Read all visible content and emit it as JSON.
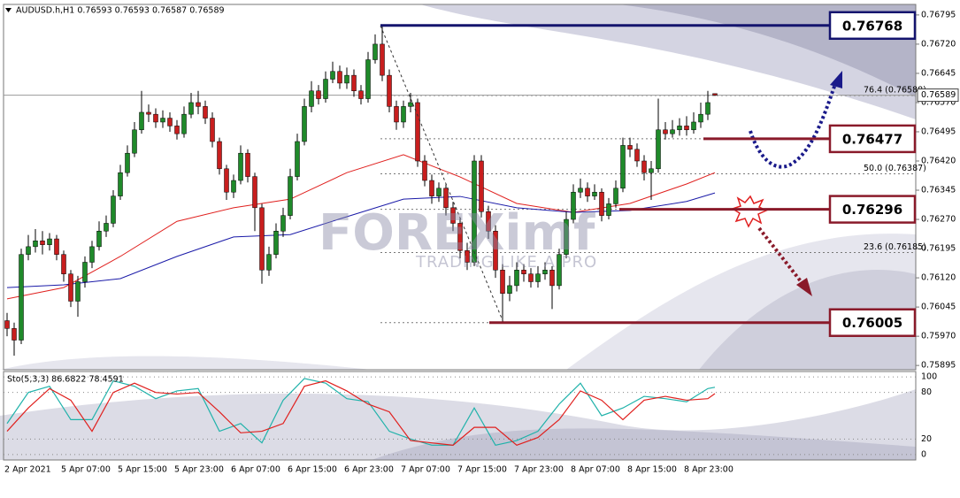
{
  "chart_data": [
    {
      "type": "candlestick",
      "title": "AUDUSD.h,H1  0.76593 0.76593 0.76587 0.76589",
      "watermark": [
        "FOREXimf",
        "TRADING LIKE A PRO"
      ],
      "categories": [
        "2 Apr 2021",
        null,
        null,
        null,
        null,
        null,
        null,
        null,
        "5 Apr 07:00",
        null,
        null,
        null,
        null,
        null,
        null,
        null,
        "5 Apr 15:00",
        null,
        null,
        null,
        null,
        null,
        null,
        null,
        "5 Apr 23:00",
        null,
        null,
        null,
        null,
        null,
        null,
        null,
        "6 Apr 07:00",
        null,
        null,
        null,
        null,
        null,
        null,
        null,
        "6 Apr 15:00",
        null,
        null,
        null,
        null,
        null,
        null,
        null,
        "6 Apr 23:00",
        null,
        null,
        null,
        null,
        null,
        null,
        null,
        "7 Apr 07:00",
        null,
        null,
        null,
        null,
        null,
        null,
        null,
        "7 Apr 15:00",
        null,
        null,
        null,
        null,
        null,
        null,
        null,
        "7 Apr 23:00",
        null,
        null,
        null,
        null,
        null,
        null,
        null,
        "8 Apr 07:00",
        null,
        null,
        null,
        null,
        null,
        null,
        null,
        "8 Apr 15:00",
        null,
        null,
        null,
        null,
        null,
        null,
        null,
        "8 Apr 23:00",
        null,
        null,
        null,
        null
      ],
      "open": [
        0.7601,
        0.7599,
        0.7596,
        0.7618,
        0.762,
        0.76215,
        0.76205,
        0.7622,
        0.7618,
        0.7613,
        0.7606,
        0.7611,
        0.7616,
        0.762,
        0.7624,
        0.7626,
        0.7633,
        0.7639,
        0.7644,
        0.765,
        0.76545,
        0.7654,
        0.7652,
        0.7653,
        0.7651,
        0.7649,
        0.7654,
        0.7657,
        0.7656,
        0.7653,
        0.7647,
        0.764,
        0.7634,
        0.7637,
        0.7644,
        0.7638,
        0.763,
        0.7614,
        0.7618,
        0.7624,
        0.7628,
        0.7638,
        0.7647,
        0.7656,
        0.766,
        0.7658,
        0.7663,
        0.7665,
        0.7662,
        0.7664,
        0.766,
        0.7658,
        0.7668,
        0.7672,
        0.7664,
        0.7656,
        0.7652,
        0.7656,
        0.7657,
        0.7642,
        0.7637,
        0.7633,
        0.7635,
        0.763,
        0.7626,
        0.7619,
        0.7616,
        0.7642,
        0.7629,
        0.7624,
        0.7614,
        0.7608,
        0.761,
        0.7614,
        0.7613,
        0.7611,
        0.7613,
        0.7614,
        0.761,
        0.7618,
        0.7627,
        0.7634,
        0.7635,
        0.7633,
        0.7634,
        0.7628,
        0.7631,
        0.7635,
        0.7646,
        0.7645,
        0.7642,
        0.7639,
        0.764,
        0.765,
        0.7649,
        0.765,
        0.7651,
        0.765,
        0.7652,
        0.7654,
        0.76593
      ],
      "high": [
        0.7603,
        0.76005,
        0.76195,
        0.7623,
        0.76245,
        0.7624,
        0.76235,
        0.7623,
        0.7619,
        0.7614,
        0.76125,
        0.76175,
        0.76215,
        0.76265,
        0.7628,
        0.76345,
        0.7641,
        0.7646,
        0.7652,
        0.766,
        0.76565,
        0.76555,
        0.7655,
        0.76545,
        0.76525,
        0.7656,
        0.76595,
        0.766,
        0.76575,
        0.76545,
        0.7648,
        0.7641,
        0.76385,
        0.7646,
        0.7645,
        0.7639,
        0.7631,
        0.762,
        0.7626,
        0.763,
        0.764,
        0.7649,
        0.7658,
        0.76625,
        0.76615,
        0.7665,
        0.76675,
        0.76665,
        0.7666,
        0.76655,
        0.76615,
        0.767,
        0.76745,
        0.76768,
        0.76655,
        0.76575,
        0.76575,
        0.76595,
        0.7658,
        0.76435,
        0.76385,
        0.76365,
        0.7636,
        0.76315,
        0.76275,
        0.7621,
        0.76435,
        0.76435,
        0.76305,
        0.76255,
        0.76155,
        0.76125,
        0.7616,
        0.76155,
        0.76145,
        0.7615,
        0.7616,
        0.7615,
        0.76195,
        0.7629,
        0.7636,
        0.76375,
        0.76365,
        0.7636,
        0.7635,
        0.76325,
        0.7637,
        0.7648,
        0.7648,
        0.76465,
        0.76435,
        0.7642,
        0.7658,
        0.7652,
        0.76525,
        0.7653,
        0.76535,
        0.76545,
        0.7657,
        0.766,
        0.76593
      ],
      "low": [
        0.7597,
        0.7592,
        0.7595,
        0.76165,
        0.76185,
        0.7618,
        0.7619,
        0.76165,
        0.7611,
        0.76045,
        0.7602,
        0.76095,
        0.76145,
        0.7619,
        0.76225,
        0.7625,
        0.7632,
        0.7638,
        0.7643,
        0.7649,
        0.7652,
        0.76505,
        0.76505,
        0.76495,
        0.76475,
        0.7648,
        0.7653,
        0.7654,
        0.76515,
        0.76455,
        0.76385,
        0.7632,
        0.76325,
        0.7636,
        0.76365,
        0.7624,
        0.76105,
        0.76125,
        0.7617,
        0.76225,
        0.7627,
        0.7637,
        0.7646,
        0.76545,
        0.76565,
        0.7657,
        0.7662,
        0.76605,
        0.76605,
        0.76585,
        0.76565,
        0.7657,
        0.7667,
        0.76625,
        0.76545,
        0.765,
        0.76505,
        0.76545,
        0.76405,
        0.76355,
        0.7631,
        0.76315,
        0.7628,
        0.7624,
        0.7617,
        0.7614,
        0.7615,
        0.76275,
        0.7622,
        0.7612,
        0.76005,
        0.7606,
        0.76085,
        0.7611,
        0.76095,
        0.76095,
        0.76115,
        0.7604,
        0.7609,
        0.7617,
        0.7626,
        0.76325,
        0.76315,
        0.7632,
        0.76265,
        0.7627,
        0.763,
        0.7634,
        0.7643,
        0.76405,
        0.7637,
        0.7632,
        0.7639,
        0.76475,
        0.7648,
        0.76485,
        0.76485,
        0.7649,
        0.76505,
        0.76525,
        0.76587
      ],
      "close": [
        0.7599,
        0.7596,
        0.7618,
        0.762,
        0.76215,
        0.76205,
        0.7622,
        0.7618,
        0.7613,
        0.7606,
        0.7611,
        0.7616,
        0.762,
        0.7624,
        0.7626,
        0.7633,
        0.7639,
        0.7644,
        0.765,
        0.76545,
        0.7654,
        0.7652,
        0.7653,
        0.7651,
        0.7649,
        0.7654,
        0.7657,
        0.7656,
        0.7653,
        0.7647,
        0.764,
        0.7634,
        0.7637,
        0.7644,
        0.7638,
        0.763,
        0.7614,
        0.7618,
        0.7624,
        0.7628,
        0.7638,
        0.7647,
        0.7656,
        0.766,
        0.7658,
        0.7663,
        0.7665,
        0.7662,
        0.7664,
        0.766,
        0.7658,
        0.7668,
        0.7672,
        0.7664,
        0.7656,
        0.7652,
        0.7656,
        0.7657,
        0.7642,
        0.7637,
        0.7633,
        0.7635,
        0.763,
        0.7626,
        0.7619,
        0.7616,
        0.7642,
        0.7629,
        0.7624,
        0.7614,
        0.7608,
        0.761,
        0.7614,
        0.7613,
        0.7611,
        0.7613,
        0.7614,
        0.761,
        0.7618,
        0.7627,
        0.7634,
        0.7635,
        0.7633,
        0.7634,
        0.7628,
        0.7631,
        0.7635,
        0.7646,
        0.7645,
        0.7642,
        0.7639,
        0.764,
        0.765,
        0.7649,
        0.765,
        0.7651,
        0.765,
        0.7652,
        0.7654,
        0.7657,
        0.76589
      ],
      "up_color": "#1f8a2a",
      "down_color": "#c81e1e",
      "moving_averages": [
        {
          "color": "#e0201e",
          "x": [
            0,
            8,
            16,
            24,
            32,
            40,
            48,
            56,
            64,
            72,
            80,
            88,
            96,
            100
          ],
          "values": [
            0.76066,
            0.76095,
            0.76175,
            0.76265,
            0.763,
            0.76322,
            0.7639,
            0.76436,
            0.76379,
            0.76311,
            0.76288,
            0.76311,
            0.76361,
            0.7639
          ]
        },
        {
          "color": "#1a1aa8",
          "x": [
            0,
            8,
            16,
            24,
            32,
            40,
            48,
            56,
            64,
            72,
            80,
            88,
            96,
            100
          ],
          "values": [
            0.76095,
            0.76102,
            0.76118,
            0.76175,
            0.76225,
            0.76231,
            0.76277,
            0.76322,
            0.76329,
            0.763,
            0.76288,
            0.76293,
            0.76316,
            0.76338
          ]
        }
      ],
      "ylim": [
        0.75884,
        0.76822
      ],
      "yticks": [
        0.76795,
        {
          "value": 0.7672,
          "label": "0.76720"
        },
        0.76645,
        {
          "value": 0.7657,
          "label": "0.76570"
        },
        0.76495,
        {
          "value": 0.7642,
          "label": "0.76420"
        },
        0.76345,
        {
          "value": 0.7627,
          "label": "0.76270"
        },
        0.76195,
        {
          "value": 0.7612,
          "label": "0.76120"
        },
        0.76045,
        {
          "value": 0.7597,
          "label": "0.75970"
        },
        0.75895
      ],
      "levels": [
        {
          "value": 0.76768,
          "color": "#14146e"
        },
        {
          "value": 0.76477,
          "color": "#8a1a2a"
        },
        {
          "value": 0.76296,
          "color": "#8a1a2a"
        },
        {
          "value": 0.76005,
          "color": "#8a1a2a"
        }
      ],
      "fib_levels": [
        {
          "label": "76.4 (0.76588)",
          "value": 0.76588
        },
        {
          "label": "50.0 (0.76387)",
          "value": 0.76387
        },
        {
          "label": "23.6 (0.76185)",
          "value": 0.76185
        }
      ]
    },
    {
      "type": "line",
      "title": "Sto(5,3,3) 86.6822 78.4591",
      "x": [
        0,
        3,
        6,
        9,
        12,
        15,
        18,
        21,
        24,
        27,
        30,
        33,
        36,
        39,
        42,
        45,
        48,
        51,
        54,
        57,
        60,
        63,
        66,
        69,
        72,
        75,
        78,
        81,
        84,
        87,
        90,
        93,
        96,
        99,
        100
      ],
      "series": [
        {
          "color": "#20b2aa",
          "values": [
            40,
            80,
            88,
            45,
            45,
            95,
            88,
            72,
            82,
            85,
            30,
            40,
            15,
            70,
            98,
            92,
            72,
            68,
            30,
            20,
            12,
            12,
            60,
            12,
            18,
            30,
            65,
            92,
            50,
            60,
            75,
            72,
            68,
            85,
            86.6822
          ]
        },
        {
          "color": "#e0201e",
          "values": [
            30,
            60,
            85,
            70,
            30,
            80,
            92,
            80,
            78,
            80,
            55,
            28,
            30,
            40,
            88,
            95,
            82,
            65,
            55,
            18,
            15,
            12,
            35,
            35,
            12,
            22,
            45,
            82,
            70,
            45,
            70,
            75,
            70,
            72,
            78.4591
          ]
        }
      ],
      "ylim": [
        -7,
        107
      ],
      "yticks": [
        0,
        20,
        80,
        100
      ]
    }
  ]
}
